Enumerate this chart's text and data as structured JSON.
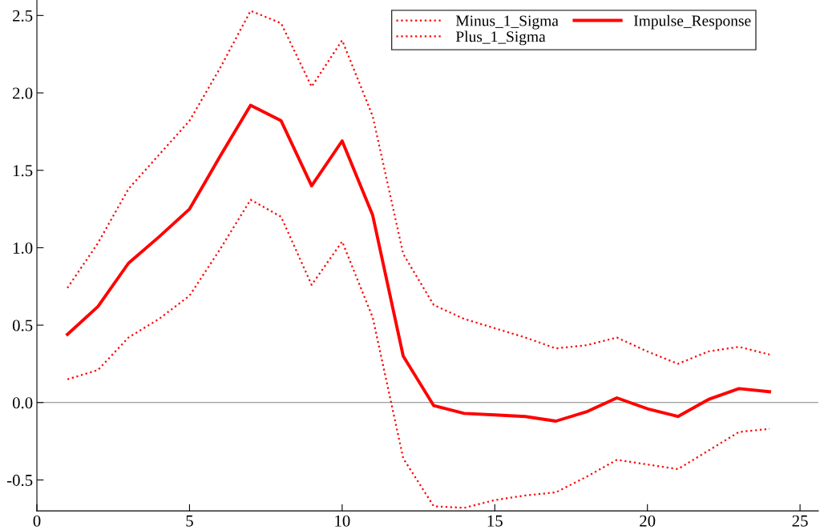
{
  "chart_data": {
    "type": "line",
    "x": [
      1,
      2,
      3,
      4,
      5,
      6,
      7,
      8,
      9,
      10,
      11,
      12,
      13,
      14,
      15,
      16,
      17,
      18,
      19,
      20,
      21,
      22,
      23,
      24
    ],
    "xlim": [
      0,
      25.6
    ],
    "xticks": [
      0,
      5,
      10,
      15,
      20,
      25
    ],
    "ylim": [
      -0.7,
      2.6
    ],
    "yticks": [
      {
        "value": -0.5,
        "label": "-0.5"
      },
      {
        "value": 0,
        "label": "0.0"
      },
      0.5,
      {
        "value": 1,
        "label": "1.0"
      },
      1.5,
      {
        "value": 2,
        "label": "2.0"
      },
      2.5
    ],
    "grid": false,
    "legend": "top right",
    "marker": "none",
    "ref_lines": [
      {
        "axis": "y",
        "value": 0,
        "color": "#808080",
        "line_style": "solid"
      }
    ],
    "series": [
      {
        "name": "Minus_1_Sigma",
        "color": "#ff0000",
        "line_style": "dotted",
        "values": [
          0.15,
          0.21,
          0.42,
          0.54,
          0.69,
          0.99,
          1.31,
          1.2,
          0.76,
          1.04,
          0.55,
          -0.36,
          -0.67,
          -0.68,
          -0.63,
          -0.6,
          -0.58,
          -0.48,
          -0.37,
          -0.4,
          -0.43,
          -0.31,
          -0.19,
          -0.17
        ]
      },
      {
        "name": "Plus_1_Sigma",
        "color": "#ff0000",
        "line_style": "dotted",
        "values": [
          0.74,
          1.03,
          1.38,
          1.6,
          1.82,
          2.16,
          2.53,
          2.45,
          2.04,
          2.34,
          1.85,
          0.96,
          0.63,
          0.54,
          0.48,
          0.42,
          0.35,
          0.37,
          0.42,
          0.33,
          0.25,
          0.33,
          0.36,
          0.31
        ]
      },
      {
        "name": "Impulse_Response",
        "color": "#ff0000",
        "line_style": "solid",
        "values": [
          0.44,
          0.62,
          0.9,
          1.07,
          1.25,
          1.59,
          1.92,
          1.82,
          1.4,
          1.69,
          1.21,
          0.3,
          -0.02,
          -0.07,
          -0.08,
          -0.09,
          -0.12,
          -0.06,
          0.03,
          -0.04,
          -0.09,
          0.02,
          0.09,
          0.07
        ]
      }
    ]
  }
}
